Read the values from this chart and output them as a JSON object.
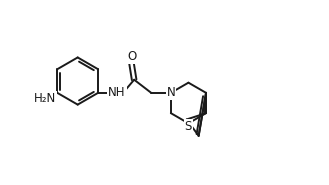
{
  "bg": "#ffffff",
  "lc": "#1a1a1a",
  "lw": 1.4,
  "fs": 8.5,
  "xlim": [
    -0.5,
    9.5
  ],
  "ylim": [
    -0.3,
    5.2
  ]
}
